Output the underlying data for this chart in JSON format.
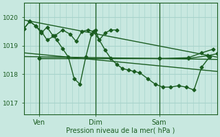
{
  "bg_color": "#c8e8e0",
  "grid_color": "#a8d4cc",
  "line_color": "#1a5c20",
  "xlabel": "Pression niveau de la mer( hPa )",
  "ylim": [
    1016.6,
    1020.5
  ],
  "yticks": [
    1017,
    1018,
    1019,
    1020
  ],
  "xtick_labels": [
    "Ven",
    "Dim",
    "Sam"
  ],
  "xtick_pos": [
    0.08,
    0.37,
    0.7
  ],
  "vlines": [
    0.08,
    0.37,
    0.7
  ],
  "series": [
    {
      "x": [
        0.0,
        1.0
      ],
      "y": [
        1019.9,
        1018.6
      ],
      "marker": null,
      "lw": 1.0
    },
    {
      "x": [
        0.0,
        1.0
      ],
      "y": [
        1018.75,
        1018.1
      ],
      "marker": null,
      "lw": 1.0
    },
    {
      "x": [
        0.0,
        1.0
      ],
      "y": [
        1018.62,
        1018.52
      ],
      "marker": null,
      "lw": 1.0
    },
    {
      "x": [
        0.08,
        0.7,
        0.85,
        0.95,
        1.0
      ],
      "y": [
        1018.55,
        1018.55,
        1018.55,
        1018.65,
        1018.72
      ],
      "marker": "D",
      "lw": 1.0,
      "ms": 2.5
    },
    {
      "x": [
        0.08,
        0.7,
        0.85,
        0.92,
        0.98
      ],
      "y": [
        1018.55,
        1018.55,
        1018.58,
        1018.75,
        1018.88
      ],
      "marker": "D",
      "lw": 1.0,
      "ms": 2.5
    },
    {
      "x": [
        0.0,
        0.03,
        0.06,
        0.09,
        0.12,
        0.16,
        0.2,
        0.24,
        0.27,
        0.3,
        0.33,
        0.36,
        0.39,
        0.42,
        0.45,
        0.48,
        0.51,
        0.54,
        0.57,
        0.6,
        0.64,
        0.68,
        0.72,
        0.76,
        0.8,
        0.84,
        0.88,
        0.92,
        0.96
      ],
      "y": [
        1019.6,
        1019.85,
        1019.7,
        1019.5,
        1019.2,
        1019.35,
        1019.55,
        1019.4,
        1019.15,
        1019.5,
        1019.55,
        1019.5,
        1019.2,
        1018.85,
        1018.55,
        1018.35,
        1018.2,
        1018.15,
        1018.1,
        1018.05,
        1017.85,
        1017.65,
        1017.55,
        1017.55,
        1017.6,
        1017.55,
        1017.45,
        1018.25,
        1018.6
      ],
      "marker": "D",
      "lw": 1.0,
      "ms": 2.5
    },
    {
      "x": [
        0.0,
        0.03,
        0.06,
        0.09,
        0.12,
        0.15,
        0.17,
        0.2,
        0.23,
        0.26,
        0.29,
        0.32,
        0.35,
        0.37,
        0.39,
        0.42,
        0.45,
        0.48
      ],
      "y": [
        1019.6,
        1019.85,
        1019.7,
        1019.45,
        1019.65,
        1019.35,
        1019.2,
        1018.9,
        1018.6,
        1017.85,
        1017.65,
        1018.6,
        1019.4,
        1019.55,
        1019.2,
        1019.45,
        1019.55,
        1019.55
      ],
      "marker": "D",
      "lw": 1.0,
      "ms": 2.5
    }
  ]
}
